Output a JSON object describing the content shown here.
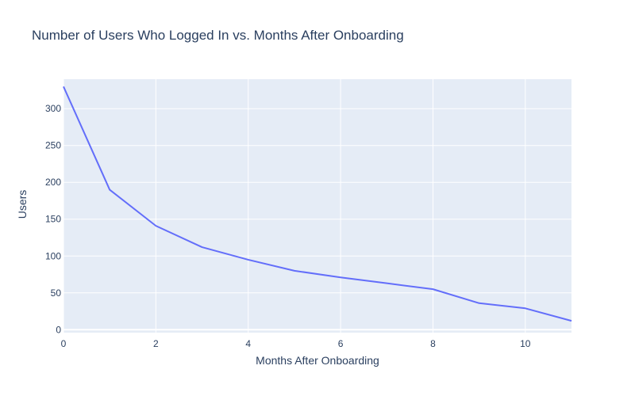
{
  "chart_data": {
    "type": "line",
    "title": "Number of Users Who Logged In vs. Months After Onboarding",
    "xlabel": "Months After Onboarding",
    "ylabel": "Users",
    "xlim": [
      0,
      11
    ],
    "ylim": [
      -4,
      340
    ],
    "x_ticks": [
      0,
      2,
      4,
      6,
      8,
      10
    ],
    "y_ticks": [
      0,
      50,
      100,
      150,
      200,
      250,
      300
    ],
    "grid": true,
    "series": [
      {
        "x": [
          0,
          1,
          2,
          3,
          4,
          5,
          6,
          7,
          8,
          9,
          10,
          11
        ],
        "values": [
          330,
          190,
          141,
          112,
          95,
          80,
          71,
          63,
          55,
          36,
          29,
          12
        ]
      }
    ],
    "colors": {
      "line": "#636efa",
      "plot_bg": "#e5ecf6",
      "grid": "#ffffff",
      "text": "#2a3f5f"
    }
  }
}
